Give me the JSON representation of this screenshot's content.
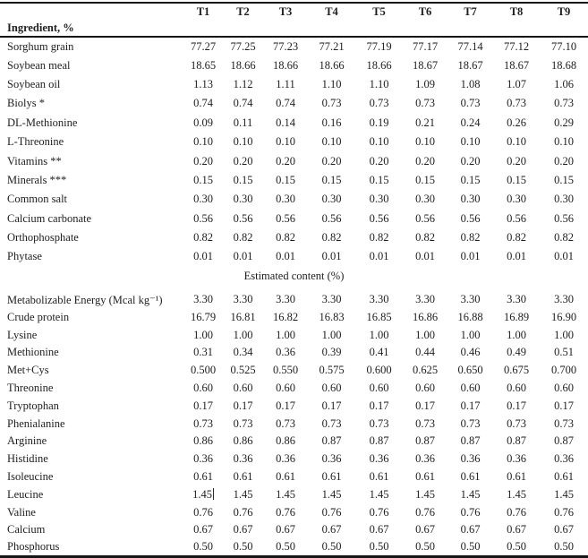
{
  "table": {
    "columns": [
      "T1",
      "T2",
      "T3",
      "T4",
      "T5",
      "T6",
      "T7",
      "T8",
      "T9"
    ],
    "ingredient_section_title": "Ingredient, %",
    "ingredient_rows": [
      {
        "label": "Sorghum grain",
        "values": [
          "77.27",
          "77.25",
          "77.23",
          "77.21",
          "77.19",
          "77.17",
          "77.14",
          "77.12",
          "77.10"
        ]
      },
      {
        "label": "Soybean meal",
        "values": [
          "18.65",
          "18.66",
          "18.66",
          "18.66",
          "18.66",
          "18.67",
          "18.67",
          "18.67",
          "18.68"
        ]
      },
      {
        "label": "Soybean oil",
        "values": [
          "1.13",
          "1.12",
          "1.11",
          "1.10",
          "1.10",
          "1.09",
          "1.08",
          "1.07",
          "1.06"
        ]
      },
      {
        "label": "Biolys *",
        "values": [
          "0.74",
          "0.74",
          "0.74",
          "0.73",
          "0.73",
          "0.73",
          "0.73",
          "0.73",
          "0.73"
        ]
      },
      {
        "label": "DL-Methionine",
        "values": [
          "0.09",
          "0.11",
          "0.14",
          "0.16",
          "0.19",
          "0.21",
          "0.24",
          "0.26",
          "0.29"
        ]
      },
      {
        "label": "L-Threonine",
        "values": [
          "0.10",
          "0.10",
          "0.10",
          "0.10",
          "0.10",
          "0.10",
          "0.10",
          "0.10",
          "0.10"
        ]
      },
      {
        "label": "Vitamins **",
        "values": [
          "0.20",
          "0.20",
          "0.20",
          "0.20",
          "0.20",
          "0.20",
          "0.20",
          "0.20",
          "0.20"
        ]
      },
      {
        "label": "Minerals ***",
        "values": [
          "0.15",
          "0.15",
          "0.15",
          "0.15",
          "0.15",
          "0.15",
          "0.15",
          "0.15",
          "0.15"
        ]
      },
      {
        "label": "Common salt",
        "values": [
          "0.30",
          "0.30",
          "0.30",
          "0.30",
          "0.30",
          "0.30",
          "0.30",
          "0.30",
          "0.30"
        ]
      },
      {
        "label": "Calcium carbonate",
        "values": [
          "0.56",
          "0.56",
          "0.56",
          "0.56",
          "0.56",
          "0.56",
          "0.56",
          "0.56",
          "0.56"
        ]
      },
      {
        "label": "Orthophosphate",
        "values": [
          "0.82",
          "0.82",
          "0.82",
          "0.82",
          "0.82",
          "0.82",
          "0.82",
          "0.82",
          "0.82"
        ]
      },
      {
        "label": "Phytase",
        "values": [
          "0.01",
          "0.01",
          "0.01",
          "0.01",
          "0.01",
          "0.01",
          "0.01",
          "0.01",
          "0.01"
        ]
      }
    ],
    "estimated_section_title": "Estimated content (%)",
    "estimated_rows": [
      {
        "label": "Metabolizable Energy (Mcal kg⁻¹)",
        "values": [
          "3.30",
          "3.30",
          "3.30",
          "3.30",
          "3.30",
          "3.30",
          "3.30",
          "3.30",
          "3.30"
        ]
      },
      {
        "label": "Crude protein",
        "values": [
          "16.79",
          "16.81",
          "16.82",
          "16.83",
          "16.85",
          "16.86",
          "16.88",
          "16.89",
          "16.90"
        ]
      },
      {
        "label": "Lysine",
        "values": [
          "1.00",
          "1.00",
          "1.00",
          "1.00",
          "1.00",
          "1.00",
          "1.00",
          "1.00",
          "1.00"
        ]
      },
      {
        "label": "Methionine",
        "values": [
          "0.31",
          "0.34",
          "0.36",
          "0.39",
          "0.41",
          "0.44",
          "0.46",
          "0.49",
          "0.51"
        ]
      },
      {
        "label": "Met+Cys",
        "values": [
          "0.500",
          "0.525",
          "0.550",
          "0.575",
          "0.600",
          "0.625",
          "0.650",
          "0.675",
          "0.700"
        ]
      },
      {
        "label": "Threonine",
        "values": [
          "0.60",
          "0.60",
          "0.60",
          "0.60",
          "0.60",
          "0.60",
          "0.60",
          "0.60",
          "0.60"
        ]
      },
      {
        "label": "Tryptophan",
        "values": [
          "0.17",
          "0.17",
          "0.17",
          "0.17",
          "0.17",
          "0.17",
          "0.17",
          "0.17",
          "0.17"
        ]
      },
      {
        "label": "Phenialanine",
        "values": [
          "0.73",
          "0.73",
          "0.73",
          "0.73",
          "0.73",
          "0.73",
          "0.73",
          "0.73",
          "0.73"
        ]
      },
      {
        "label": "Arginine",
        "values": [
          "0.86",
          "0.86",
          "0.86",
          "0.87",
          "0.87",
          "0.87",
          "0.87",
          "0.87",
          "0.87"
        ]
      },
      {
        "label": "Histidine",
        "values": [
          "0.36",
          "0.36",
          "0.36",
          "0.36",
          "0.36",
          "0.36",
          "0.36",
          "0.36",
          "0.36"
        ]
      },
      {
        "label": "Isoleucine",
        "values": [
          "0.61",
          "0.61",
          "0.61",
          "0.61",
          "0.61",
          "0.61",
          "0.61",
          "0.61",
          "0.61"
        ]
      },
      {
        "label": "Leucine",
        "values": [
          "1.45",
          "1.45",
          "1.45",
          "1.45",
          "1.45",
          "1.45",
          "1.45",
          "1.45",
          "1.45"
        ]
      },
      {
        "label": "Valine",
        "values": [
          "0.76",
          "0.76",
          "0.76",
          "0.76",
          "0.76",
          "0.76",
          "0.76",
          "0.76",
          "0.76"
        ]
      },
      {
        "label": "Calcium",
        "values": [
          "0.67",
          "0.67",
          "0.67",
          "0.67",
          "0.67",
          "0.67",
          "0.67",
          "0.67",
          "0.67"
        ]
      },
      {
        "label": "Phosphorus",
        "values": [
          "0.50",
          "0.50",
          "0.50",
          "0.50",
          "0.50",
          "0.50",
          "0.50",
          "0.50",
          "0.50"
        ]
      }
    ],
    "artifacts": {
      "text_cursor_row_label": "Leucine",
      "text_cursor_column_index": 0
    }
  }
}
